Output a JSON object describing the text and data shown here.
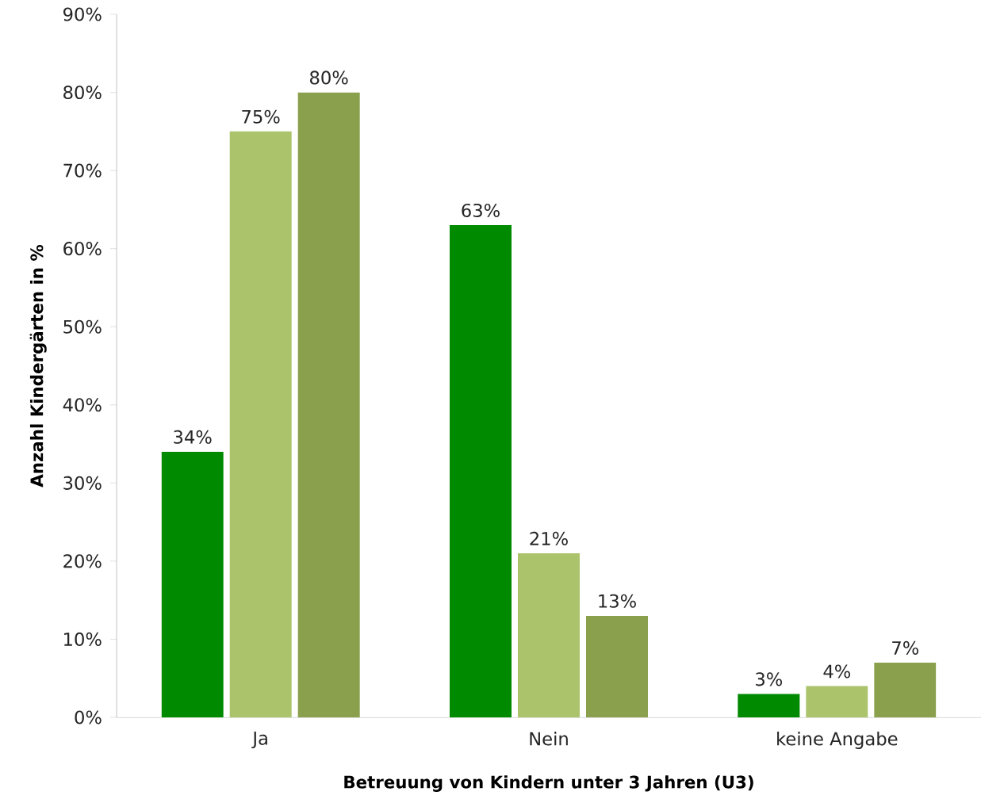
{
  "chart_data": {
    "type": "bar",
    "xlabel": "Betreuung von Kindern unter 3 Jahren (U3)",
    "ylabel": "Anzahl Kindergärten in %",
    "categories": [
      "Ja",
      "Nein",
      "keine Angabe"
    ],
    "series": [
      {
        "color": "#008a00",
        "values": [
          34,
          63,
          3
        ],
        "value_labels": [
          "34%",
          "63%",
          "3%"
        ]
      },
      {
        "color": "#abc46c",
        "values": [
          75,
          21,
          4
        ],
        "value_labels": [
          "75%",
          "21%",
          "4%"
        ]
      },
      {
        "color": "#8ba04c",
        "values": [
          80,
          13,
          7
        ],
        "value_labels": [
          "80%",
          "13%",
          "7%"
        ]
      }
    ],
    "ylim": [
      0,
      90
    ],
    "yticks": [
      {
        "value": 0,
        "label": "0%"
      },
      {
        "value": 10,
        "label": "10%"
      },
      {
        "value": 20,
        "label": "20%"
      },
      {
        "value": 30,
        "label": "30%"
      },
      {
        "value": 40,
        "label": "40%"
      },
      {
        "value": 50,
        "label": "50%"
      },
      {
        "value": 60,
        "label": "60%"
      },
      {
        "value": 70,
        "label": "70%"
      },
      {
        "value": 80,
        "label": "80%"
      },
      {
        "value": 90,
        "label": "90%"
      }
    ],
    "grid": false
  }
}
